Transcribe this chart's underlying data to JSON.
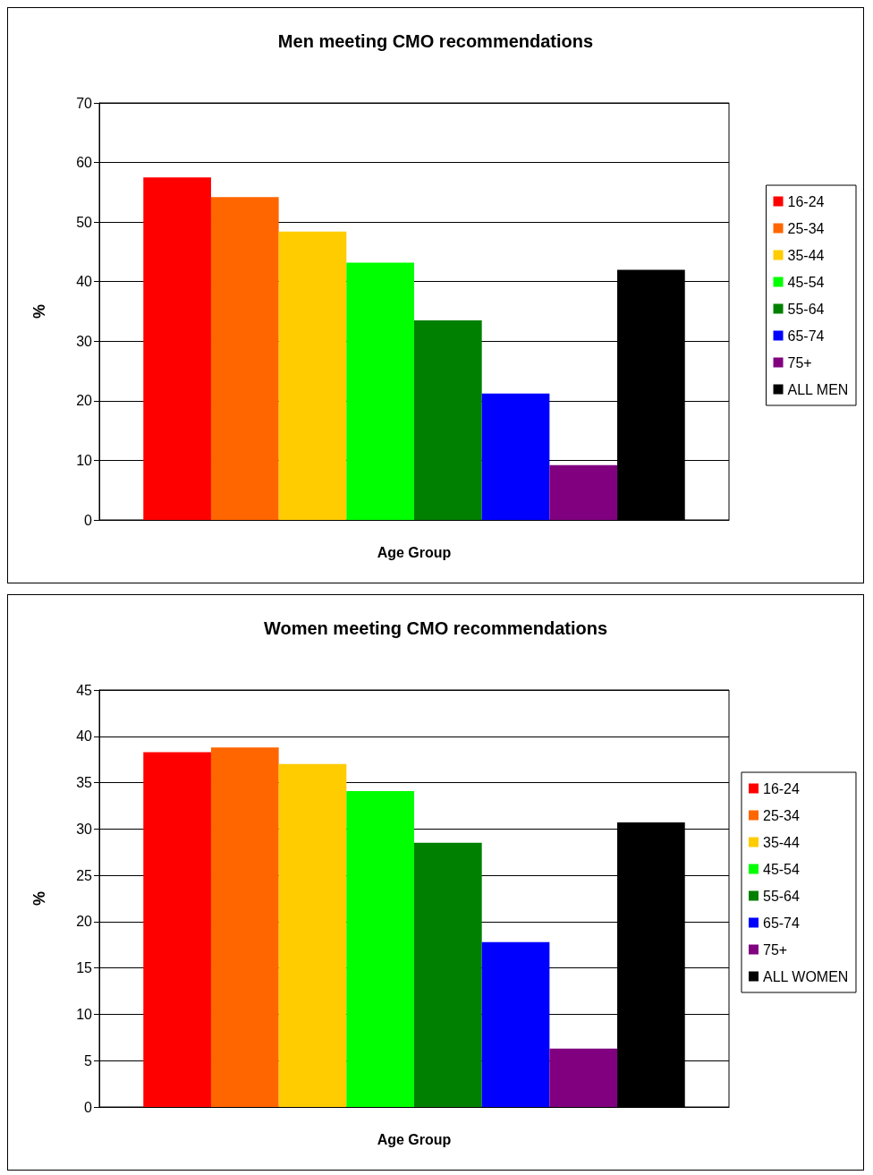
{
  "chart_data": [
    {
      "type": "bar",
      "title": "Men meeting CMO recommendations",
      "xlabel": "Age Group",
      "ylabel": "%",
      "categories": [
        null
      ],
      "ylim": [
        0,
        70
      ],
      "yticks": [
        0,
        10,
        20,
        30,
        40,
        50,
        60,
        70
      ],
      "grid": "y",
      "legend": "right",
      "series": [
        {
          "name": "16-24",
          "color": "#ff0000",
          "values": [
            57.5
          ]
        },
        {
          "name": "25-34",
          "color": "#ff6600",
          "values": [
            54.2
          ]
        },
        {
          "name": "35-44",
          "color": "#ffcc00",
          "values": [
            48.4
          ]
        },
        {
          "name": "45-54",
          "color": "#00ff00",
          "values": [
            43.2
          ]
        },
        {
          "name": "55-64",
          "color": "#008000",
          "values": [
            33.5
          ]
        },
        {
          "name": "65-74",
          "color": "#0000ff",
          "values": [
            21.2
          ]
        },
        {
          "name": "75+",
          "color": "#800080",
          "values": [
            9.2
          ]
        },
        {
          "name": "ALL MEN",
          "color": "#000000",
          "values": [
            42.0
          ]
        }
      ]
    },
    {
      "type": "bar",
      "title": "Women meeting CMO recommendations",
      "xlabel": "Age Group",
      "ylabel": "%",
      "categories": [
        null
      ],
      "ylim": [
        0,
        45
      ],
      "yticks": [
        0,
        5,
        10,
        15,
        20,
        25,
        30,
        35,
        40,
        45
      ],
      "grid": "y",
      "legend": "right",
      "series": [
        {
          "name": "16-24",
          "color": "#ff0000",
          "values": [
            38.3
          ]
        },
        {
          "name": "25-34",
          "color": "#ff6600",
          "values": [
            38.8
          ]
        },
        {
          "name": "35-44",
          "color": "#ffcc00",
          "values": [
            37.0
          ]
        },
        {
          "name": "45-54",
          "color": "#00ff00",
          "values": [
            34.1
          ]
        },
        {
          "name": "55-64",
          "color": "#008000",
          "values": [
            28.5
          ]
        },
        {
          "name": "65-74",
          "color": "#0000ff",
          "values": [
            17.8
          ]
        },
        {
          "name": "75+",
          "color": "#800080",
          "values": [
            6.3
          ]
        },
        {
          "name": "ALL WOMEN",
          "color": "#000000",
          "values": [
            30.7
          ]
        }
      ]
    }
  ]
}
